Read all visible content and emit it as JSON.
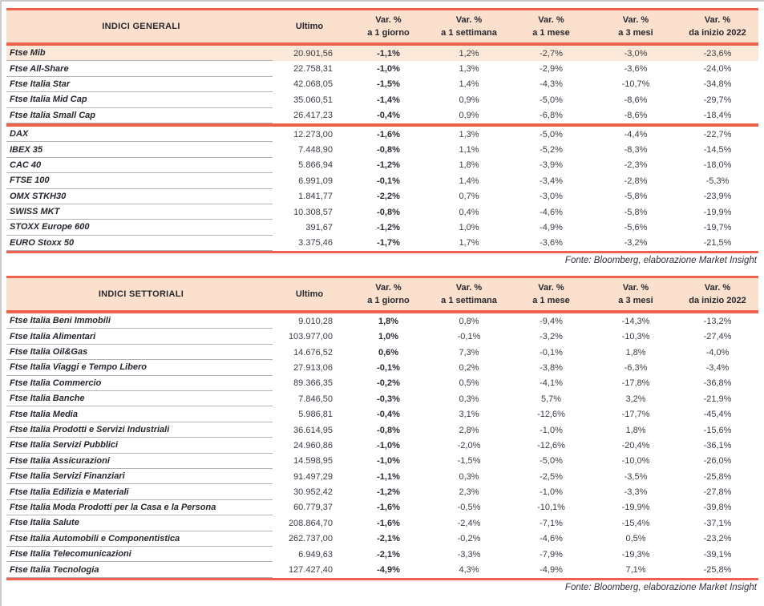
{
  "colors": {
    "accent_line": "#ef614c",
    "header_bg": "#fbe1cd",
    "highlight_row_bg": "#fce8d9",
    "row_separator": "#b3b3b3",
    "page_border": "#c9c9c9",
    "text_dark": "#26262e",
    "text_number": "#3d3d47"
  },
  "source_note": "Fonte: Bloomberg, elaborazione Market Insight",
  "columns": [
    {
      "key": "ultimo",
      "line1": "Ultimo",
      "line2": ""
    },
    {
      "key": "var_1_giorno",
      "line1": "Var. %",
      "line2": "a 1 giorno"
    },
    {
      "key": "var_1_settimana",
      "line1": "Var. %",
      "line2": "a 1 settimana"
    },
    {
      "key": "var_1_mese",
      "line1": "Var. %",
      "line2": "a 1 mese"
    },
    {
      "key": "var_3_mesi",
      "line1": "Var. %",
      "line2": "a 3 mesi"
    },
    {
      "key": "var_da_inizio_2022",
      "line1": "Var. %",
      "line2": "da inizio 2022"
    }
  ],
  "tables": [
    {
      "title": "INDICI GENERALI",
      "groups": [
        [
          {
            "name": "Ftse Mib",
            "highlight": true,
            "values": [
              "20.901,56",
              "-1,1%",
              "1,2%",
              "-2,7%",
              "-3,0%",
              "-23,6%"
            ]
          },
          {
            "name": "Ftse All-Share",
            "values": [
              "22.758,31",
              "-1,0%",
              "1,3%",
              "-2,9%",
              "-3,6%",
              "-24,0%"
            ]
          },
          {
            "name": "Ftse Italia Star",
            "values": [
              "42.068,05",
              "-1,5%",
              "1,4%",
              "-4,3%",
              "-10,7%",
              "-34,8%"
            ]
          },
          {
            "name": "Ftse Italia Mid Cap",
            "values": [
              "35.060,51",
              "-1,4%",
              "0,9%",
              "-5,0%",
              "-8,6%",
              "-29,7%"
            ]
          },
          {
            "name": "Ftse Italia Small Cap",
            "values": [
              "26.417,23",
              "-0,4%",
              "0,9%",
              "-6,8%",
              "-8,6%",
              "-18,4%"
            ]
          }
        ],
        [
          {
            "name": "DAX",
            "values": [
              "12.273,00",
              "-1,6%",
              "1,3%",
              "-5,0%",
              "-4,4%",
              "-22,7%"
            ]
          },
          {
            "name": "IBEX 35",
            "values": [
              "7.448,90",
              "-0,8%",
              "1,1%",
              "-5,2%",
              "-8,3%",
              "-14,5%"
            ]
          },
          {
            "name": "CAC 40",
            "values": [
              "5.866,94",
              "-1,2%",
              "1,8%",
              "-3,9%",
              "-2,3%",
              "-18,0%"
            ]
          },
          {
            "name": "FTSE 100",
            "values": [
              "6.991,09",
              "-0,1%",
              "1,4%",
              "-3,4%",
              "-2,8%",
              "-5,3%"
            ]
          },
          {
            "name": "OMX STKH30",
            "values": [
              "1.841,77",
              "-2,2%",
              "0,7%",
              "-3,0%",
              "-5,8%",
              "-23,9%"
            ]
          },
          {
            "name": "SWISS MKT",
            "values": [
              "10.308,57",
              "-0,8%",
              "0,4%",
              "-4,6%",
              "-5,8%",
              "-19,9%"
            ]
          },
          {
            "name": "STOXX Europe 600",
            "values": [
              "391,67",
              "-1,2%",
              "1,0%",
              "-4,9%",
              "-5,6%",
              "-19,7%"
            ]
          },
          {
            "name": "EURO Stoxx 50",
            "values": [
              "3.375,46",
              "-1,7%",
              "1,7%",
              "-3,6%",
              "-3,2%",
              "-21,5%"
            ]
          }
        ]
      ]
    },
    {
      "title": "INDICI SETTORIALI",
      "groups": [
        [
          {
            "name": "Ftse Italia Beni Immobili",
            "values": [
              "9.010,28",
              "1,8%",
              "0,8%",
              "-9,4%",
              "-14,3%",
              "-13,2%"
            ]
          },
          {
            "name": "Ftse Italia Alimentari",
            "values": [
              "103.977,00",
              "1,0%",
              "-0,1%",
              "-3,2%",
              "-10,3%",
              "-27,4%"
            ]
          },
          {
            "name": "Ftse Italia Oil&Gas",
            "values": [
              "14.676,52",
              "0,6%",
              "7,3%",
              "-0,1%",
              "1,8%",
              "-4,0%"
            ]
          },
          {
            "name": "Ftse Italia Viaggi e Tempo Libero",
            "values": [
              "27.913,06",
              "-0,1%",
              "0,2%",
              "-3,8%",
              "-6,3%",
              "-3,4%"
            ]
          },
          {
            "name": "Ftse Italia Commercio",
            "values": [
              "89.366,35",
              "-0,2%",
              "0,5%",
              "-4,1%",
              "-17,8%",
              "-36,8%"
            ]
          },
          {
            "name": "Ftse Italia Banche",
            "values": [
              "7.846,50",
              "-0,3%",
              "0,3%",
              "5,7%",
              "3,2%",
              "-21,9%"
            ]
          },
          {
            "name": "Ftse Italia Media",
            "values": [
              "5.986,81",
              "-0,4%",
              "3,1%",
              "-12,6%",
              "-17,7%",
              "-45,4%"
            ]
          },
          {
            "name": "Ftse Italia Prodotti e Servizi Industriali",
            "values": [
              "36.614,95",
              "-0,8%",
              "2,8%",
              "-1,0%",
              "1,8%",
              "-15,6%"
            ]
          },
          {
            "name": "Ftse Italia Servizi Pubblici",
            "values": [
              "24.960,86",
              "-1,0%",
              "-2,0%",
              "-12,6%",
              "-20,4%",
              "-36,1%"
            ]
          },
          {
            "name": "Ftse Italia Assicurazioni",
            "values": [
              "14.598,95",
              "-1,0%",
              "-1,5%",
              "-5,0%",
              "-10,0%",
              "-26,0%"
            ]
          },
          {
            "name": "Ftse Italia Servizi Finanziari",
            "values": [
              "91.497,29",
              "-1,1%",
              "0,3%",
              "-2,5%",
              "-3,5%",
              "-25,8%"
            ]
          },
          {
            "name": "Ftse Italia Edilizia e Materiali",
            "values": [
              "30.952,42",
              "-1,2%",
              "2,3%",
              "-1,0%",
              "-3,3%",
              "-27,8%"
            ]
          },
          {
            "name": "Ftse Italia Moda Prodotti per la Casa e la Persona",
            "values": [
              "60.779,37",
              "-1,6%",
              "-0,5%",
              "-10,1%",
              "-19,9%",
              "-39,8%"
            ]
          },
          {
            "name": "Ftse Italia Salute",
            "values": [
              "208.864,70",
              "-1,6%",
              "-2,4%",
              "-7,1%",
              "-15,4%",
              "-37,1%"
            ]
          },
          {
            "name": "Ftse Italia Automobili e Componentistica",
            "values": [
              "262.737,00",
              "-2,1%",
              "-0,2%",
              "-4,6%",
              "0,5%",
              "-23,2%"
            ]
          },
          {
            "name": "Ftse Italia Telecomunicazioni",
            "values": [
              "6.949,63",
              "-2,1%",
              "-3,3%",
              "-7,9%",
              "-19,3%",
              "-39,1%"
            ]
          },
          {
            "name": "Ftse Italia Tecnologia",
            "values": [
              "127.427,40",
              "-4,9%",
              "4,3%",
              "-4,9%",
              "7,1%",
              "-25,8%"
            ]
          }
        ]
      ]
    }
  ]
}
